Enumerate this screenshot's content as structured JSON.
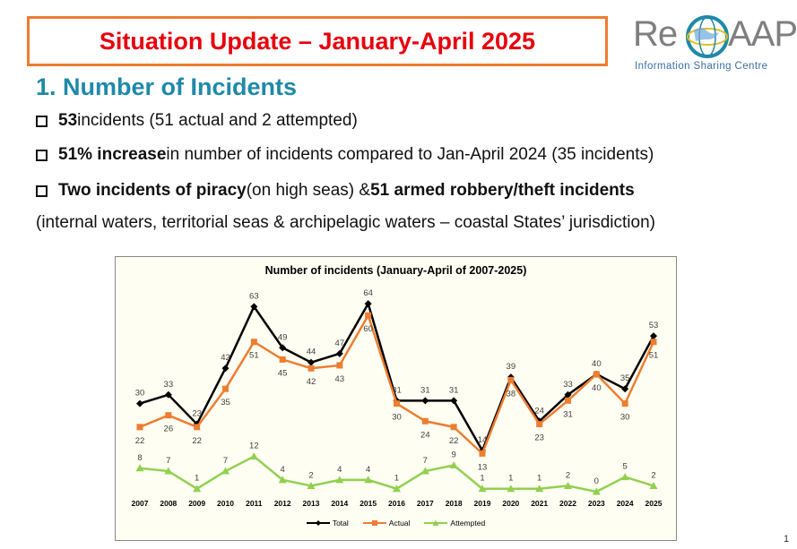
{
  "slide": {
    "title": "Situation Update – January-April 2025",
    "logo_re": "Re",
    "logo_aap": "AAP",
    "logo_tagline": "Information Sharing Centre",
    "heading": "1. Number of Incidents",
    "bullet1_bold": "53",
    "bullet1_rest": " incidents (51 actual and 2 attempted)",
    "bullet2_bold": "51% increase",
    "bullet2_rest": " in number of incidents compared to Jan-April 2024 (35 incidents)",
    "bullet3_bold1": "Two incidents of piracy",
    "bullet3_mid": " (on high seas) & ",
    "bullet3_bold2": "51 armed robbery/theft incidents",
    "note": "(internal waters, territorial seas & archipelagic waters – coastal States’ jurisdiction)",
    "page_number": "1"
  },
  "colors": {
    "total": "#000000",
    "actual": "#ED7D31",
    "attempted": "#92D050",
    "title_red": "#E8000C",
    "heading_teal": "#1F89A8"
  },
  "chart_data": {
    "type": "line",
    "title": "Number of incidents (January-April of 2007-2025)",
    "x": [
      "2007",
      "2008",
      "2009",
      "2010",
      "2011",
      "2012",
      "2013",
      "2014",
      "2015",
      "2016",
      "2017",
      "2018",
      "2019",
      "2020",
      "2021",
      "2022",
      "2023",
      "2024",
      "2025"
    ],
    "series": [
      {
        "name": "Total",
        "values": [
          30,
          33,
          23,
          42,
          63,
          49,
          44,
          47,
          64,
          31,
          31,
          31,
          14,
          39,
          24,
          33,
          40,
          35,
          53
        ]
      },
      {
        "name": "Actual",
        "values": [
          22,
          26,
          22,
          35,
          51,
          45,
          42,
          43,
          60,
          30,
          24,
          22,
          13,
          38,
          23,
          31,
          40,
          30,
          51
        ]
      },
      {
        "name": "Attempted",
        "values": [
          8,
          7,
          1,
          7,
          12,
          4,
          2,
          4,
          4,
          1,
          7,
          9,
          1,
          1,
          1,
          2,
          0,
          5,
          2
        ]
      }
    ],
    "ylim": [
      0,
      70
    ],
    "legend_position": "bottom"
  }
}
